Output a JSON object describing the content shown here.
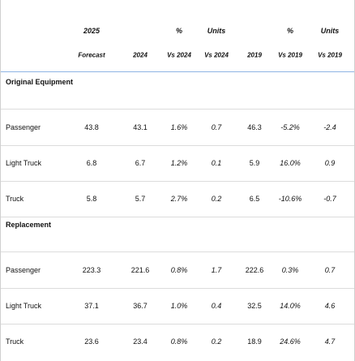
{
  "table": {
    "header_rows": [
      [
        null,
        "2025",
        null,
        "%",
        "Units",
        null,
        "%",
        "Units"
      ],
      [
        null,
        "Forecast",
        "2024",
        "Vs 2024",
        "Vs 2024",
        "2019",
        "Vs 2019",
        "Vs 2019"
      ]
    ],
    "sections": [
      {
        "title": "Original Equipment",
        "rows": [
          [
            "Passenger",
            "43.8",
            "43.1",
            "1.6%",
            "0.7",
            "46.3",
            "-5.2%",
            "-2.4"
          ],
          [
            "Light Truck",
            "6.8",
            "6.7",
            "1.2%",
            "0.1",
            "5.9",
            "16.0%",
            "0.9"
          ],
          [
            "Truck",
            "5.8",
            "5.7",
            "2.7%",
            "0.2",
            "6.5",
            "-10.6%",
            "-0.7"
          ]
        ]
      },
      {
        "title": "Replacement",
        "rows": [
          [
            "Passenger",
            "223.3",
            "221.6",
            "0.8%",
            "1.7",
            "222.6",
            "0.3%",
            "0.7"
          ],
          [
            "Light Truck",
            "37.1",
            "36.7",
            "1.0%",
            "0.4",
            "32.5",
            "14.0%",
            "4.6"
          ],
          [
            "Truck",
            "23.6",
            "23.4",
            "0.8%",
            "0.2",
            "18.9",
            "24.6%",
            "4.7"
          ]
        ]
      }
    ]
  }
}
